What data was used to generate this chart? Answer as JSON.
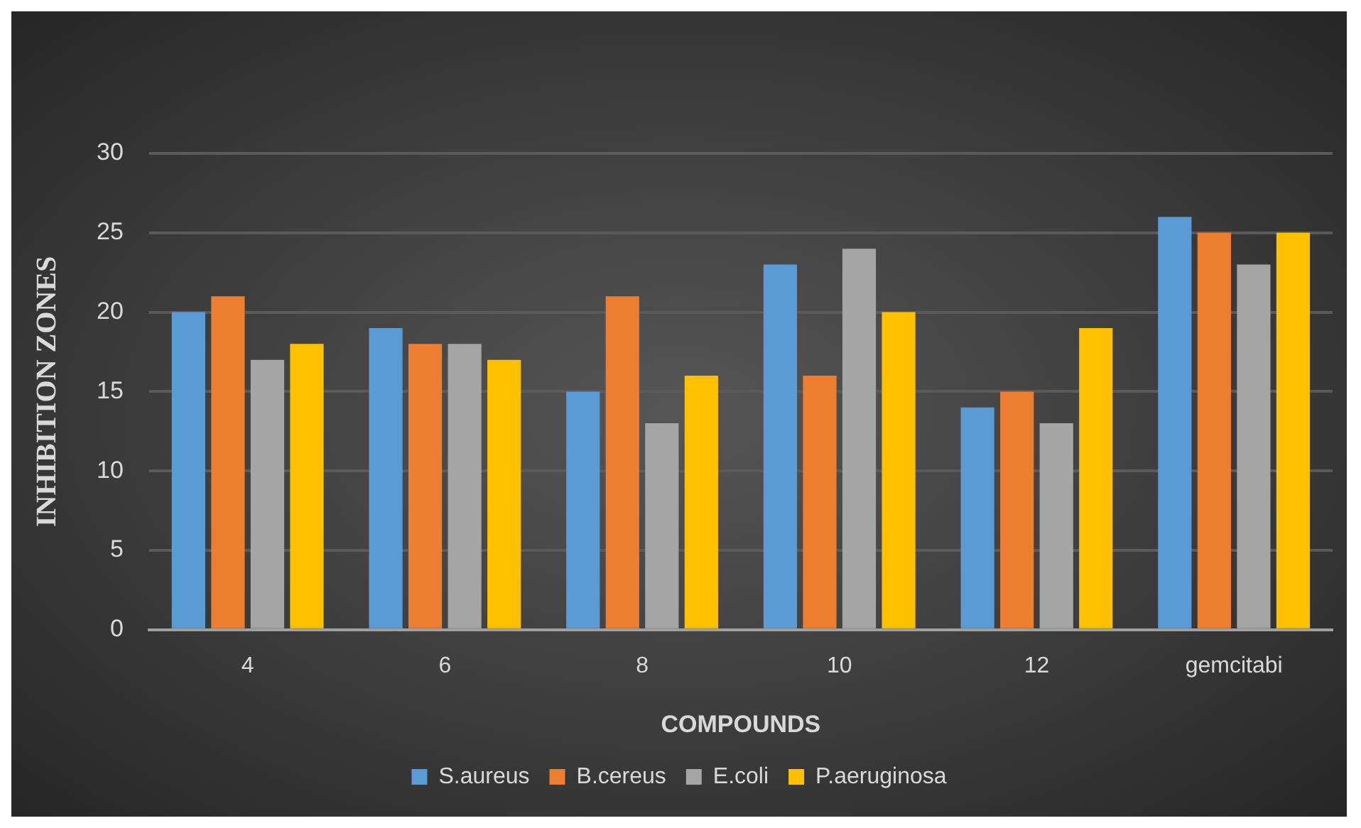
{
  "chart_data": {
    "type": "bar",
    "xlabel": "COMPOUNDS",
    "ylabel": "INHIBITION ZONES",
    "categories": [
      "4",
      "6",
      "8",
      "10",
      "12",
      "gemcitabi"
    ],
    "series": [
      {
        "name": "S.aureus",
        "color": "#5b9bd5",
        "values": [
          20,
          19,
          15,
          23,
          14,
          26
        ]
      },
      {
        "name": "B.cereus",
        "color": "#ed7d31",
        "values": [
          21,
          18,
          21,
          16,
          15,
          25
        ]
      },
      {
        "name": "E.coli",
        "color": "#a5a5a5",
        "values": [
          17,
          18,
          13,
          24,
          13,
          23
        ]
      },
      {
        "name": "P.aeruginosa",
        "color": "#ffc000",
        "values": [
          18,
          17,
          16,
          20,
          19,
          25
        ]
      }
    ],
    "ylim": [
      0,
      30
    ],
    "yticks": [
      0,
      5,
      10,
      15,
      20,
      25,
      30
    ],
    "grid": "y",
    "legend": "bottom"
  }
}
